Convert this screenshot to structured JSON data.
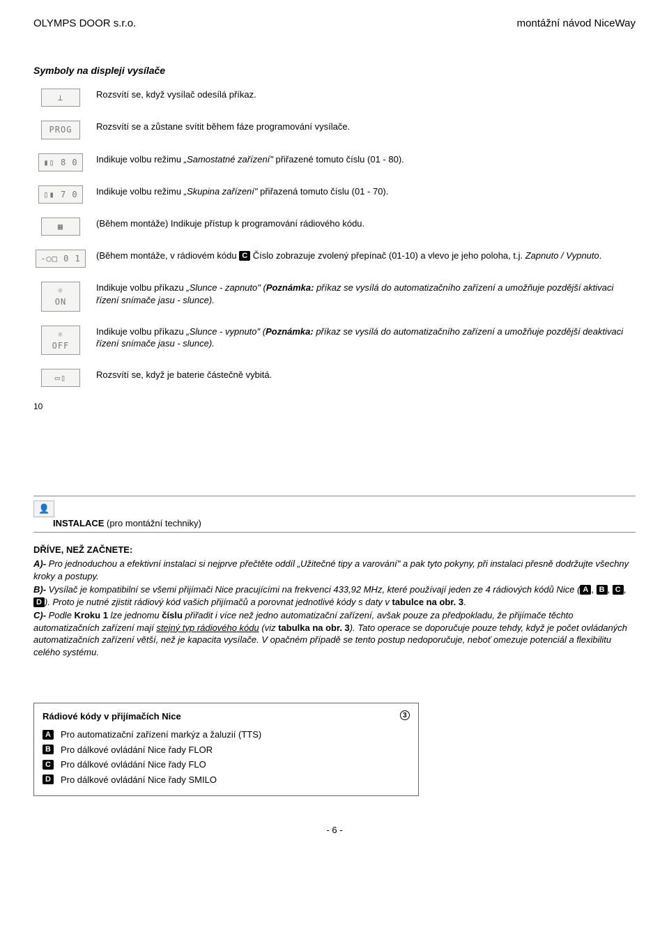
{
  "header": {
    "left": "OLYMPS DOOR s.r.o.",
    "right": "montážní návod NiceWay"
  },
  "symbols": {
    "title": "Symboly na displeji vysílače",
    "items": [
      {
        "icon_name": "antenna-icon",
        "icon_text": "⟂",
        "text": "Rozsvítí se, když vysílač odesílá příkaz."
      },
      {
        "icon_name": "prog-icon",
        "icon_text": "PROG",
        "text": "Rozsvítí se a zůstane svítit během fáze programování vysílače."
      },
      {
        "icon_name": "num-80-icon",
        "icon_text": "▮▯ 8 0",
        "text_html": "Indikuje volbu režimu <i>„Samostatné zařízení\"</i> přiřazené tomuto číslu (01 - 80)."
      },
      {
        "icon_name": "num-70-icon",
        "icon_text": "▯▮ 7 0",
        "text_html": "Indikuje volbu režimu <i>„Skupina zařízení\"</i> přiřazená tomuto číslu (01 - 70)."
      },
      {
        "icon_name": "grid-icon",
        "icon_text": "▦",
        "text": "(Během montáže) Indikuje přístup k programování rádiového kódu."
      },
      {
        "icon_name": "code-01-icon",
        "icon_text": "-○□  0 1",
        "text_html": "(Během montáže, v rádiovém kódu <span class=\"code-badge\">C</span>  Číslo zobrazuje zvolený přepínač (01-10) a vlevo je jeho poloha, t.j. <i>Zapnuto / Vypnuto</i>."
      },
      {
        "icon_name": "sun-on-icon",
        "icon_text": "☼\nON",
        "text_html": "Indikuje volbu příkazu <i>„Slunce - zapnuto\" (<b>Poznámka:</b> příkaz se vysílá do automatizačního zařízení a umožňuje pozdější aktivaci řízení snímače jasu - slunce).</i>"
      },
      {
        "icon_name": "sun-off-icon",
        "icon_text": "☼\nOFF",
        "text_html": "Indikuje volbu příkazu <i>„Slunce - vypnuto\" (<b>Poznámka:</b> příkaz se vysílá do automatizačního zařízení a umožňuje pozdější deaktivaci řízení snímače jasu - slunce).</i>"
      },
      {
        "icon_name": "battery-icon",
        "icon_text": "▭▯",
        "text": "Rozsvítí se, když je baterie částečně vybitá."
      }
    ],
    "side_number": "10"
  },
  "installation": {
    "icon_name": "technician-icon",
    "heading": "INSTALACE",
    "heading_suffix": " (pro montážní techniky)",
    "subhead": "DŘÍVE, NEŽ ZAČNETE:",
    "a_prefix": "A)- ",
    "a_text": "Pro jednoduchou a efektivní instalaci si nejprve přečtěte oddíl „Užitečné tipy a varování\" a pak tyto pokyny, při instalaci přesně dodržujte všechny kroky a postupy.",
    "b_prefix": "B)- ",
    "b_text_1": "Vysílač je kompatibilní se všemi přijímači Nice pracujícími na frekvenci 433,92 MHz, které používají jeden ze 4 rádiových kódů Nice (",
    "b_codes": [
      "A",
      "B",
      "C",
      "D"
    ],
    "b_text_2": "). Proto je nutné zjistit rádiový kód vašich přijímačů a porovnat jednotlivé kódy s daty v ",
    "b_bold_end": "tabulce na obr. 3",
    "b_dot": ".",
    "c_prefix": "C)- ",
    "c_text_1": "Podle ",
    "c_bold_1": "Kroku 1",
    "c_text_2": " lze jednomu ",
    "c_bold_2": "číslu",
    "c_text_3": " přiřadit i více než jedno automatizační zařízení, avšak pouze za předpokladu, že přijímače těchto automatizačních zařízení mají ",
    "c_underline": "stejný typ rádiového kódu",
    "c_text_4": " (viz ",
    "c_bold_3": "tabulka na obr. 3",
    "c_text_5": "). Tato operace se doporučuje pouze tehdy, když je počet ovládaných automatizačních zařízení větší, než je kapacita vysílače. V opačném případě se tento postup nedoporučuje, neboť omezuje potenciál a flexibilitu celého systému."
  },
  "radio_table": {
    "title": "Rádiové kódy v přijímačích Nice",
    "circle": "3",
    "rows": [
      {
        "code": "A",
        "label": "Pro automatizační zařízení markýz a žaluzií (TTS)"
      },
      {
        "code": "B",
        "label": "Pro dálkové ovládání Nice řady FLOR"
      },
      {
        "code": "C",
        "label": "Pro dálkové ovládání Nice řady FLO"
      },
      {
        "code": "D",
        "label": "Pro dálkové ovládání Nice řady SMILO"
      }
    ]
  },
  "footer": {
    "page": "- 6 -"
  },
  "colors": {
    "text": "#000000",
    "border": "#888888",
    "lcd_bg": "#f4f4f2",
    "badge_bg": "#000000",
    "badge_fg": "#ffffff"
  }
}
